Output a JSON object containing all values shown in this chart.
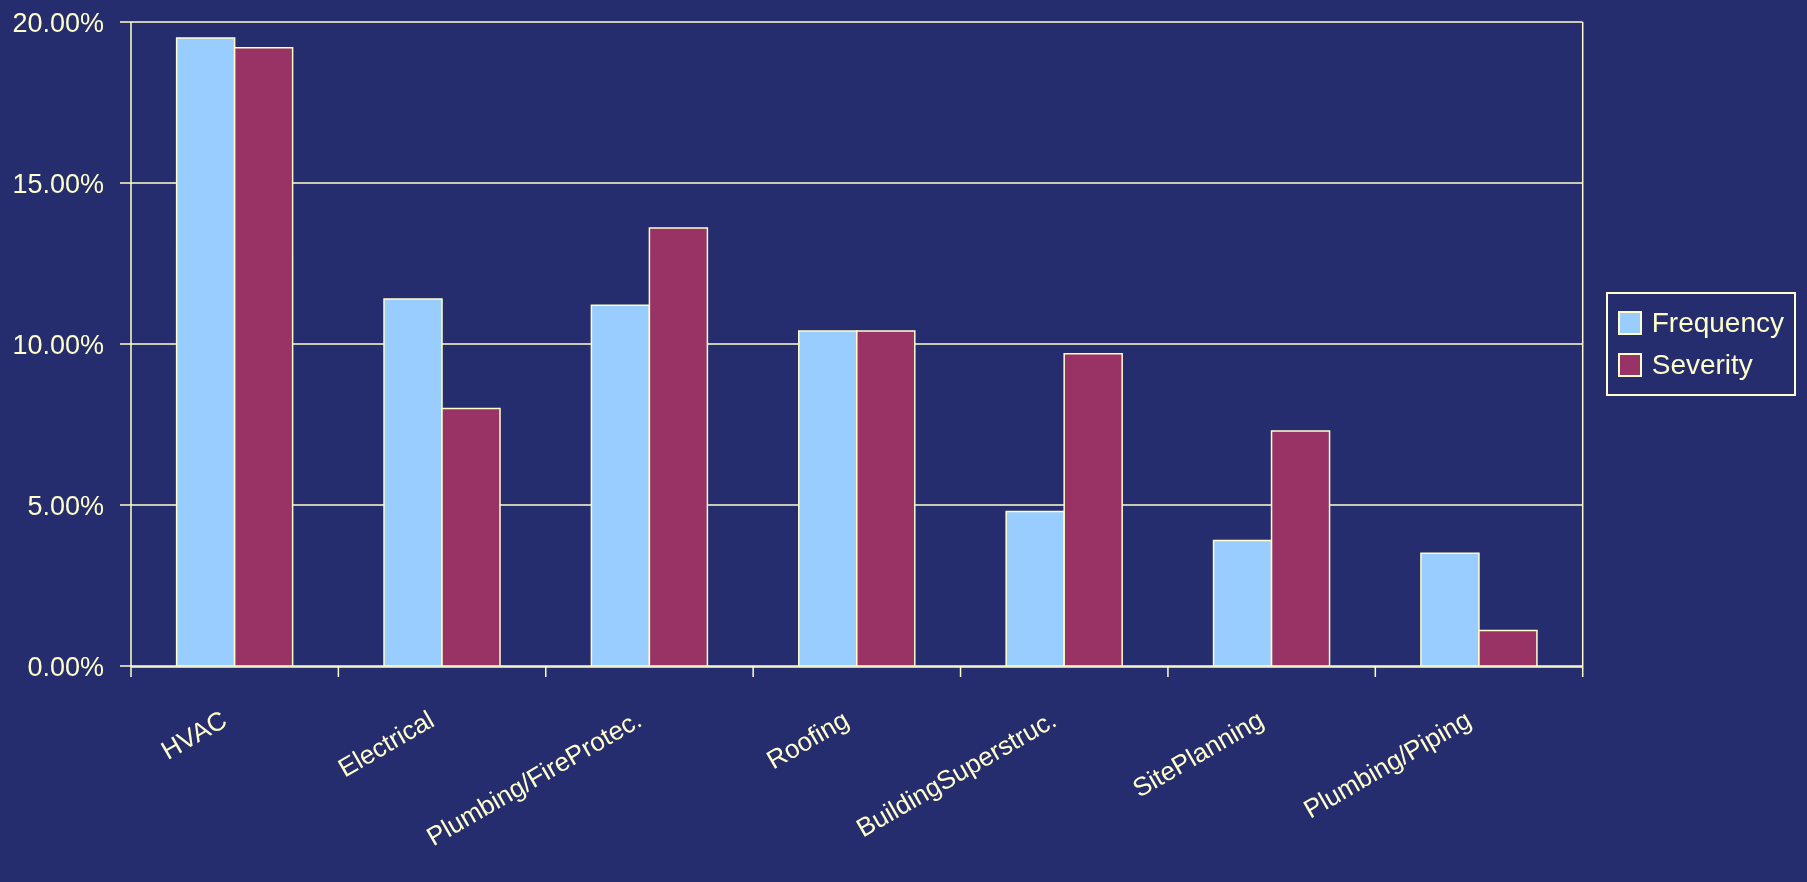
{
  "chart_data": {
    "type": "bar",
    "categories": [
      "HVAC",
      "Electrical",
      "Plumbing/FireProtec.",
      "Roofing",
      "BuildingSuperstruc.",
      "SitePlanning",
      "Plumbing/Piping"
    ],
    "series": [
      {
        "name": "Frequency",
        "color": "#99ccff",
        "values": [
          19.5,
          11.4,
          11.2,
          10.4,
          4.8,
          3.9,
          3.5
        ]
      },
      {
        "name": "Severity",
        "color": "#993366",
        "values": [
          19.2,
          8.0,
          13.6,
          10.4,
          9.7,
          7.3,
          1.1
        ]
      }
    ],
    "ylim": [
      0,
      20
    ],
    "yticks": [
      {
        "value": 0,
        "label": "0.00%"
      },
      {
        "value": 5,
        "label": "5.00%"
      },
      {
        "value": 10,
        "label": "10.00%"
      },
      {
        "value": 15,
        "label": "15.00%"
      },
      {
        "value": 20,
        "label": "20.00%"
      }
    ],
    "grid": "y",
    "legend": "right"
  }
}
